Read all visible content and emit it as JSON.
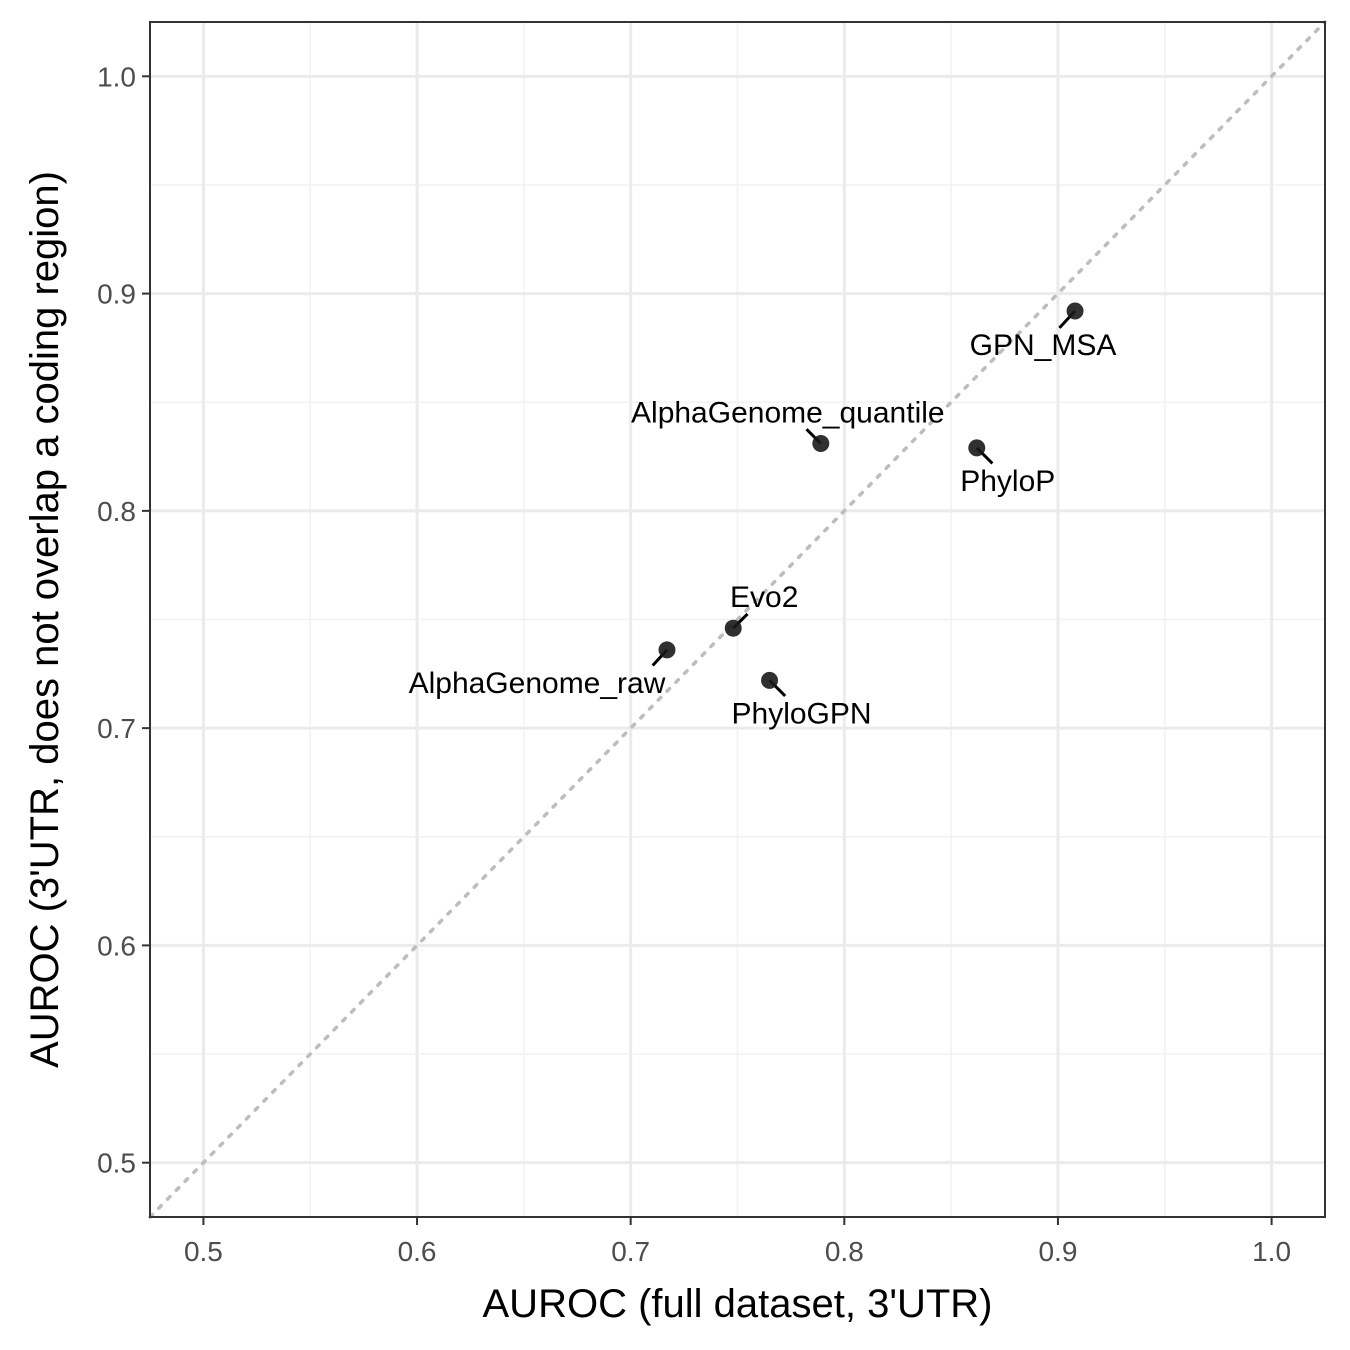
{
  "chart_data": {
    "type": "scatter",
    "title": "",
    "xlabel": "AUROC (full dataset, 3'UTR)",
    "ylabel": "AUROC (3'UTR, does not overlap a coding region)",
    "xlim": [
      0.475,
      1.025
    ],
    "ylim": [
      0.475,
      1.025
    ],
    "x_ticks": [
      "0.5",
      "0.6",
      "0.7",
      "0.8",
      "0.9",
      "1.0"
    ],
    "y_ticks": [
      "0.5",
      "0.6",
      "0.7",
      "0.8",
      "0.9",
      "1.0"
    ],
    "grid": true,
    "reference_line": "y = x (dotted, grey)",
    "points": [
      {
        "label": "GPN_MSA",
        "x": 0.908,
        "y": 0.892
      },
      {
        "label": "AlphaGenome_quantile",
        "x": 0.789,
        "y": 0.831
      },
      {
        "label": "PhyloP",
        "x": 0.862,
        "y": 0.829
      },
      {
        "label": "Evo2",
        "x": 0.748,
        "y": 0.746
      },
      {
        "label": "AlphaGenome_raw",
        "x": 0.717,
        "y": 0.736
      },
      {
        "label": "PhyloGPN",
        "x": 0.765,
        "y": 0.722
      }
    ],
    "colors": {
      "point": "#1a1a1a",
      "grid_major": "#ebebeb",
      "grid_minor": "#f2f2f2",
      "reference_line": "#bdbdbd",
      "panel_border": "#333333"
    }
  }
}
